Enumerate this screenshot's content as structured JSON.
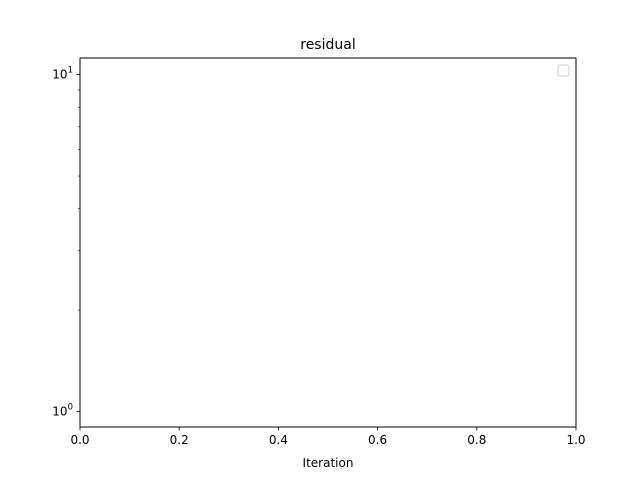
{
  "chart_data": {
    "type": "line",
    "title": "residual",
    "xlabel": "Iteration",
    "ylabel": "",
    "xlim": [
      0.0,
      1.0
    ],
    "ylim": [
      0.9,
      11.2
    ],
    "yscale": "log",
    "x_ticks": [
      "0.0",
      "0.2",
      "0.4",
      "0.6",
      "0.8",
      "1.0"
    ],
    "y_major_ticks": [
      {
        "value": 1,
        "base": "10",
        "exponent": "0"
      },
      {
        "value": 10,
        "base": "10",
        "exponent": "1"
      }
    ],
    "grid": false,
    "legend": "top-right",
    "series": []
  }
}
